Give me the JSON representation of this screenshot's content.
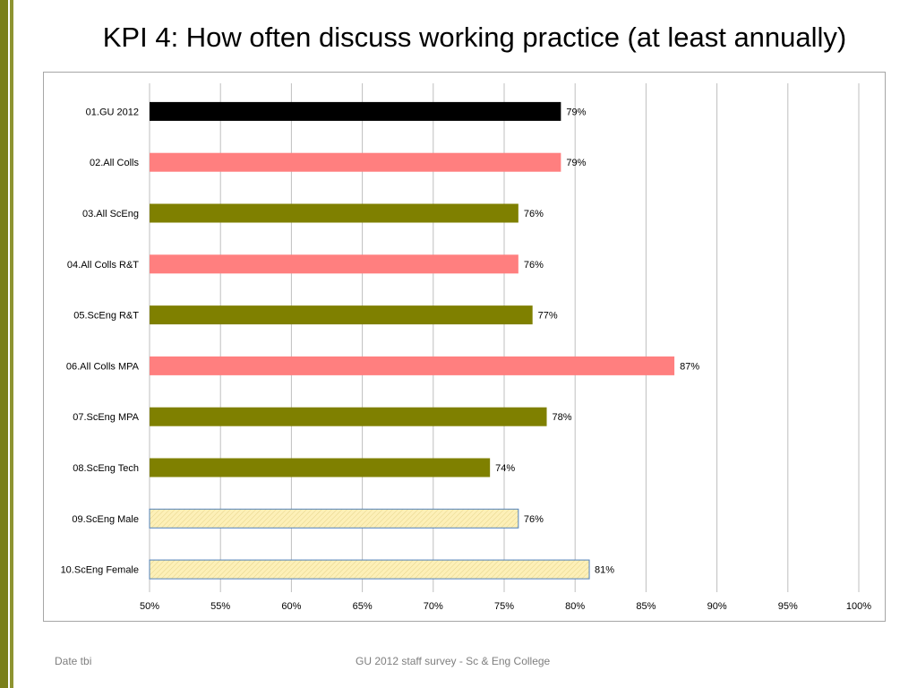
{
  "slide": {
    "title": "KPI 4: How often discuss working practice (at least annually)",
    "footer_left": "Date tbi",
    "footer_center": "GU 2012 staff survey -  Sc & Eng College"
  },
  "colors": {
    "black": "#000000",
    "pink": "#ff7f7f",
    "olive": "#7f8000",
    "cream": "#fdf0b8",
    "cream_border": "#4f81bd",
    "accent_bar": "#7a7f1a"
  },
  "chart_data": {
    "type": "bar",
    "orientation": "horizontal",
    "categories": [
      "01.GU 2012",
      "02.All Colls",
      "03.All ScEng",
      "04.All Colls R&T",
      "05.ScEng R&T",
      "06.All Colls MPA",
      "07.ScEng MPA",
      "08.ScEng Tech",
      "09.ScEng Male",
      "10.ScEng Female"
    ],
    "values": [
      79,
      79,
      76,
      76,
      77,
      87,
      78,
      74,
      76,
      81
    ],
    "data_labels": [
      "79%",
      "79%",
      "76%",
      "76%",
      "77%",
      "87%",
      "78%",
      "74%",
      "76%",
      "81%"
    ],
    "bar_colors": [
      "black",
      "pink",
      "olive",
      "pink",
      "olive",
      "pink",
      "olive",
      "olive",
      "cream",
      "cream"
    ],
    "xlim": [
      50,
      100
    ],
    "xticks": [
      50,
      55,
      60,
      65,
      70,
      75,
      80,
      85,
      90,
      95,
      100
    ],
    "xtick_labels": [
      "50%",
      "55%",
      "60%",
      "65%",
      "70%",
      "75%",
      "80%",
      "85%",
      "90%",
      "95%",
      "100%"
    ],
    "grid": true,
    "legend": "none"
  }
}
